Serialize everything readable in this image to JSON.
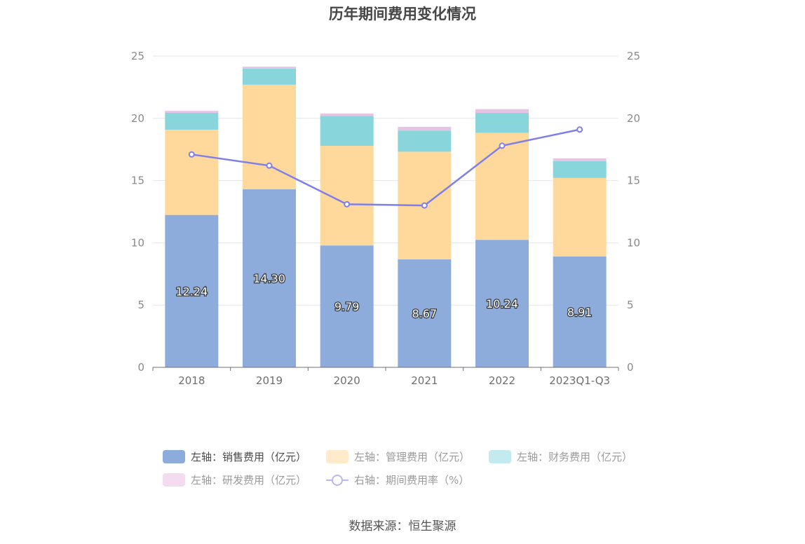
{
  "title": "历年期间费用变化情况",
  "source": "数据来源：恒生聚源",
  "chart_data": {
    "type": "bar",
    "stacked": true,
    "categories": [
      "2018",
      "2019",
      "2020",
      "2021",
      "2022",
      "2023Q1-Q3"
    ],
    "left_axis": {
      "min": 0,
      "max": 25,
      "ticks": [
        0,
        5,
        10,
        15,
        20,
        25
      ]
    },
    "right_axis": {
      "min": 0,
      "max": 25,
      "ticks": [
        0,
        5,
        10,
        15,
        20,
        25
      ]
    },
    "grid": true,
    "legend_position": "bottom",
    "series": [
      {
        "name": "左轴：销售费用（亿元）",
        "axis": "left",
        "kind": "bar",
        "color": "#8eacdb",
        "values": [
          12.24,
          14.3,
          9.79,
          8.67,
          10.24,
          8.91
        ],
        "labels": [
          "12.24",
          "14.30",
          "9.79",
          "8.67",
          "10.24",
          "8.91"
        ]
      },
      {
        "name": "左轴：管理费用（亿元）",
        "axis": "left",
        "kind": "bar",
        "color": "#ffd99c",
        "values": [
          6.85,
          8.4,
          8.0,
          8.65,
          8.6,
          6.3
        ]
      },
      {
        "name": "左轴：财务费用（亿元）",
        "axis": "left",
        "kind": "bar",
        "color": "#88d5db",
        "values": [
          1.35,
          1.3,
          2.4,
          1.7,
          1.6,
          1.35
        ]
      },
      {
        "name": "左轴：研发费用（亿元）",
        "axis": "left",
        "kind": "bar",
        "color": "#e8c4e4",
        "values": [
          0.16,
          0.15,
          0.2,
          0.3,
          0.3,
          0.22
        ]
      },
      {
        "name": "右轴：期间费用率（%）",
        "axis": "right",
        "kind": "line",
        "color": "#7f7fe9",
        "values": [
          17.1,
          16.2,
          13.1,
          13.0,
          17.8,
          19.1
        ]
      }
    ]
  }
}
